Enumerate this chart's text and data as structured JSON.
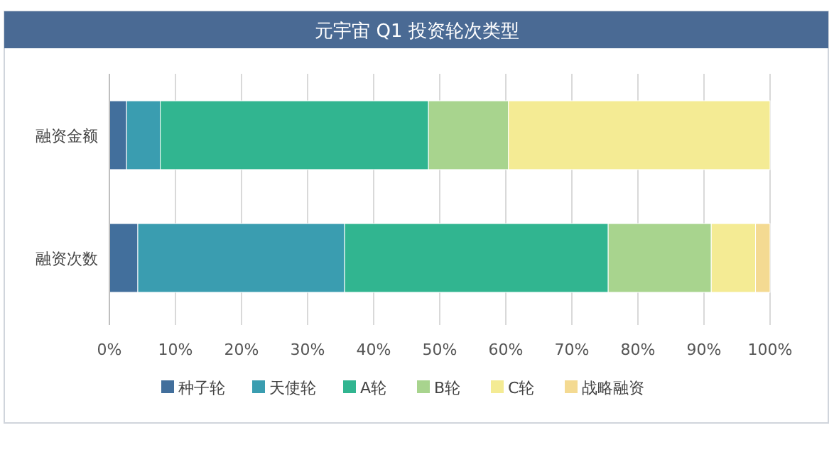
{
  "chart_data": {
    "type": "bar",
    "orientation": "horizontal",
    "stacked": true,
    "title": "元宇宙 Q1 投资轮次类型",
    "categories": [
      "融资金额",
      "融资次数"
    ],
    "series": [
      {
        "name": "种子轮",
        "color": "#426f9c",
        "values": [
          2.6,
          4.3
        ]
      },
      {
        "name": "天使轮",
        "color": "#3a9db0",
        "values": [
          5.1,
          31.3
        ]
      },
      {
        "name": "A轮",
        "color": "#31b590",
        "values": [
          40.6,
          39.9
        ]
      },
      {
        "name": "B轮",
        "color": "#a8d48e",
        "values": [
          12.1,
          15.6
        ]
      },
      {
        "name": "C轮",
        "color": "#f4eb94",
        "values": [
          39.6,
          6.7
        ]
      },
      {
        "name": "战略融资",
        "color": "#f4da92",
        "values": [
          0,
          2.2
        ]
      }
    ],
    "xlim": [
      0,
      100
    ],
    "xticks": [
      {
        "value": 0,
        "label": "0%"
      },
      {
        "value": 10,
        "label": "10%"
      },
      {
        "value": 20,
        "label": "20%"
      },
      {
        "value": 30,
        "label": "30%"
      },
      {
        "value": 40,
        "label": "40%"
      },
      {
        "value": 50,
        "label": "50%"
      },
      {
        "value": 60,
        "label": "60%"
      },
      {
        "value": 70,
        "label": "70%"
      },
      {
        "value": 80,
        "label": "80%"
      },
      {
        "value": 90,
        "label": "90%"
      },
      {
        "value": 100,
        "label": "100%"
      }
    ],
    "grid": "x",
    "legend": "bottom"
  }
}
